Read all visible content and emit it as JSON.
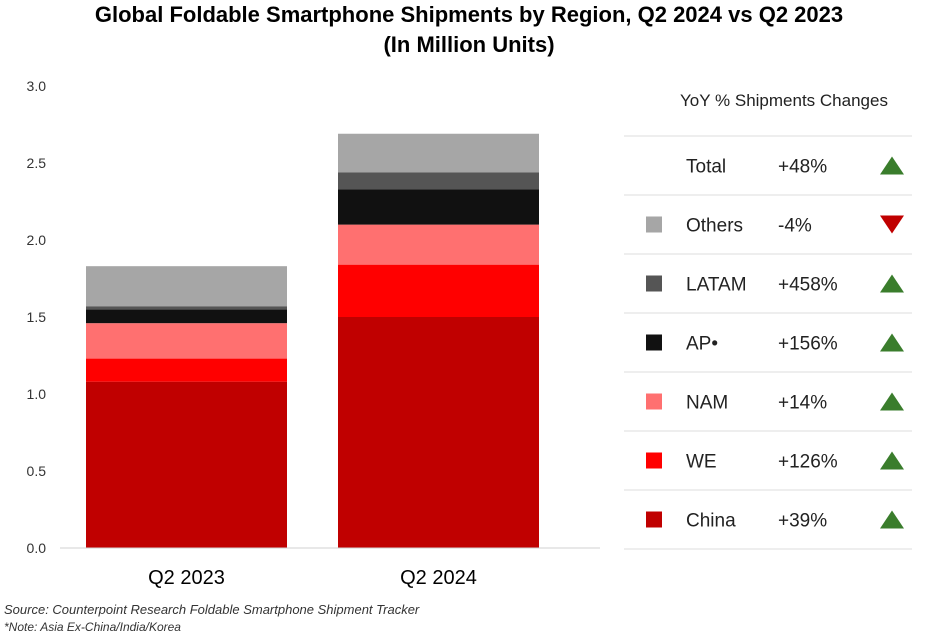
{
  "title_line1": "Global Foldable Smartphone Shipments by Region, Q2 2024 vs Q2 2023",
  "title_line2": "(In Million Units)",
  "source": "Source: Counterpoint Research Foldable Smartphone Shipment Tracker",
  "note": "*Note: Asia Ex-China/India/Korea",
  "chart_data": {
    "type": "bar",
    "stacked": true,
    "categories": [
      "Q2 2023",
      "Q2 2024"
    ],
    "ylim": [
      0,
      3.0
    ],
    "yticks": [
      "0.0",
      "0.5",
      "1.0",
      "1.5",
      "2.0",
      "2.5",
      "3.0"
    ],
    "ytick_values": [
      0,
      0.5,
      1.0,
      1.5,
      2.0,
      2.5,
      3.0
    ],
    "series": [
      {
        "name": "China",
        "color": "#c00000",
        "values": [
          1.08,
          1.5
        ]
      },
      {
        "name": "WE",
        "color": "#ff0000",
        "values": [
          0.15,
          0.34
        ]
      },
      {
        "name": "NAM",
        "color": "#ff7070",
        "values": [
          0.23,
          0.26
        ]
      },
      {
        "name": "AP",
        "color": "#111111",
        "values": [
          0.09,
          0.23
        ]
      },
      {
        "name": "LATAM",
        "color": "#555555",
        "values": [
          0.02,
          0.11
        ]
      },
      {
        "name": "Others",
        "color": "#a6a6a6",
        "values": [
          0.26,
          0.25
        ]
      }
    ]
  },
  "yoy_table": {
    "header": "YoY % Shipments Changes",
    "rows": [
      {
        "label": "Total",
        "value": "+48%",
        "direction": "up",
        "swatch": ""
      },
      {
        "label": "Others",
        "value": "-4%",
        "direction": "down",
        "swatch": "#a6a6a6"
      },
      {
        "label": "LATAM",
        "value": "+458%",
        "direction": "up",
        "swatch": "#555555"
      },
      {
        "label": "AP•",
        "value": "+156%",
        "direction": "up",
        "swatch": "#111111"
      },
      {
        "label": "NAM",
        "value": "+14%",
        "direction": "up",
        "swatch": "#ff7070"
      },
      {
        "label": "WE",
        "value": "+126%",
        "direction": "up",
        "swatch": "#ff0000"
      },
      {
        "label": "China",
        "value": "+39%",
        "direction": "up",
        "swatch": "#c00000"
      }
    ],
    "up_color": "#3a7d2c",
    "down_color": "#c00000"
  }
}
